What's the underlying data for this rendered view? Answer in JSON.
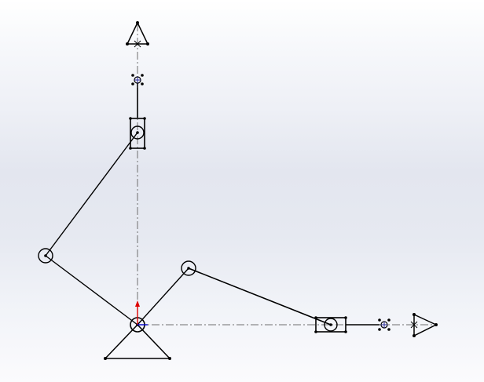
{
  "viewport": {
    "background_top": "#ffffff",
    "background_bottom": "#fbfbfd"
  },
  "colors": {
    "line": "#000000",
    "centerline": "#6e6e6e",
    "x_axis_arrow": "#0000cc",
    "y_axis_arrow": "#dd0000",
    "point_marker": "#2a2a9a"
  },
  "mechanism": {
    "ground_pivot": "origin",
    "links": [
      "crank-left",
      "coupler-vertical",
      "crank-right",
      "coupler-horizontal"
    ],
    "sliders": [
      "vertical-slider",
      "horizontal-slider"
    ],
    "driven_pivots": [
      "left-pivot",
      "right-pivot"
    ],
    "icons": [
      "ground-triangle-icon",
      "top-end-triangle-icon",
      "right-end-triangle-icon"
    ]
  }
}
